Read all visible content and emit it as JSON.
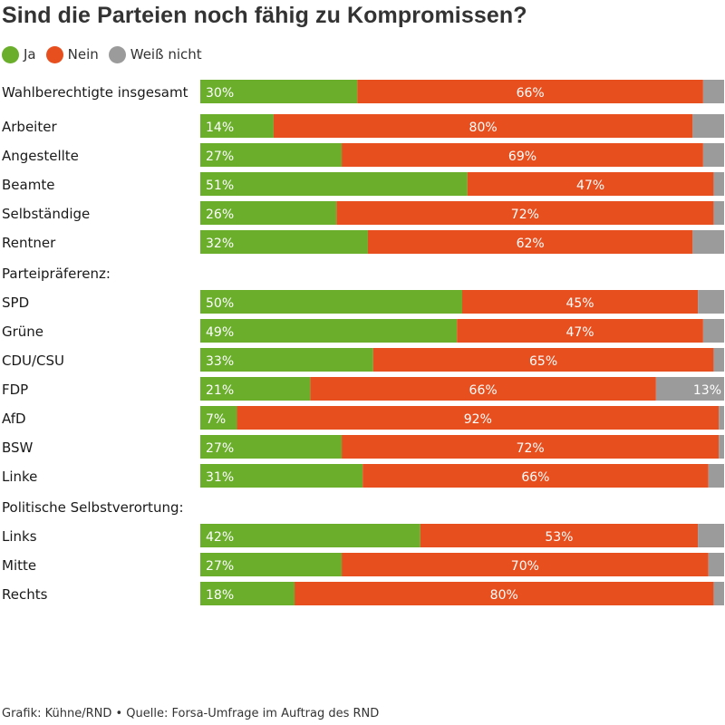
{
  "chart_data": {
    "type": "bar",
    "orientation": "horizontal",
    "stacked": true,
    "title": "Sind die Parteien noch fähig zu Kompromissen?",
    "legend": [
      {
        "label": "Ja",
        "color": "#6aae2c"
      },
      {
        "label": "Nein",
        "color": "#e84f1f"
      },
      {
        "label": "Weiß nicht",
        "color": "#9b9b9b"
      }
    ],
    "legend_position": "top-left",
    "groups": [
      {
        "heading": "",
        "rows": [
          {
            "label": "Wahlberechtigte insgesamt",
            "values": [
              30,
              66,
              4
            ],
            "labels": [
              "30%",
              "66%",
              ""
            ]
          }
        ]
      },
      {
        "heading": "",
        "rows": [
          {
            "label": "Arbeiter",
            "values": [
              14,
              80,
              6
            ],
            "labels": [
              "14%",
              "80%",
              ""
            ]
          },
          {
            "label": "Angestellte",
            "values": [
              27,
              69,
              4
            ],
            "labels": [
              "27%",
              "69%",
              ""
            ]
          },
          {
            "label": "Beamte",
            "values": [
              51,
              47,
              2
            ],
            "labels": [
              "51%",
              "47%",
              ""
            ]
          },
          {
            "label": "Selbständige",
            "values": [
              26,
              72,
              2
            ],
            "labels": [
              "26%",
              "72%",
              ""
            ]
          },
          {
            "label": "Rentner",
            "values": [
              32,
              62,
              6
            ],
            "labels": [
              "32%",
              "62%",
              ""
            ]
          }
        ]
      },
      {
        "heading": "Parteipräferenz:",
        "rows": [
          {
            "label": "SPD",
            "values": [
              50,
              45,
              5
            ],
            "labels": [
              "50%",
              "45%",
              ""
            ]
          },
          {
            "label": "Grüne",
            "values": [
              49,
              47,
              4
            ],
            "labels": [
              "49%",
              "47%",
              ""
            ]
          },
          {
            "label": "CDU/CSU",
            "values": [
              33,
              65,
              2
            ],
            "labels": [
              "33%",
              "65%",
              ""
            ]
          },
          {
            "label": "FDP",
            "values": [
              21,
              66,
              13
            ],
            "labels": [
              "21%",
              "66%",
              "13%"
            ]
          },
          {
            "label": "AfD",
            "values": [
              7,
              92,
              1
            ],
            "labels": [
              "7%",
              "92%",
              ""
            ]
          },
          {
            "label": "BSW",
            "values": [
              27,
              72,
              1
            ],
            "labels": [
              "27%",
              "72%",
              ""
            ]
          },
          {
            "label": "Linke",
            "values": [
              31,
              66,
              3
            ],
            "labels": [
              "31%",
              "66%",
              ""
            ]
          }
        ]
      },
      {
        "heading": "Politische Selbstverortung:",
        "rows": [
          {
            "label": "Links",
            "values": [
              42,
              53,
              5
            ],
            "labels": [
              "42%",
              "53%",
              ""
            ]
          },
          {
            "label": "Mitte",
            "values": [
              27,
              70,
              3
            ],
            "labels": [
              "27%",
              "70%",
              ""
            ]
          },
          {
            "label": "Rechts",
            "values": [
              18,
              80,
              2
            ],
            "labels": [
              "18%",
              "80%",
              ""
            ]
          }
        ]
      }
    ],
    "xlim": [
      0,
      100
    ],
    "unit": "%"
  },
  "footer": "Grafik: Kühne/RND • Quelle: Forsa-Umfrage im Auftrag des RND"
}
